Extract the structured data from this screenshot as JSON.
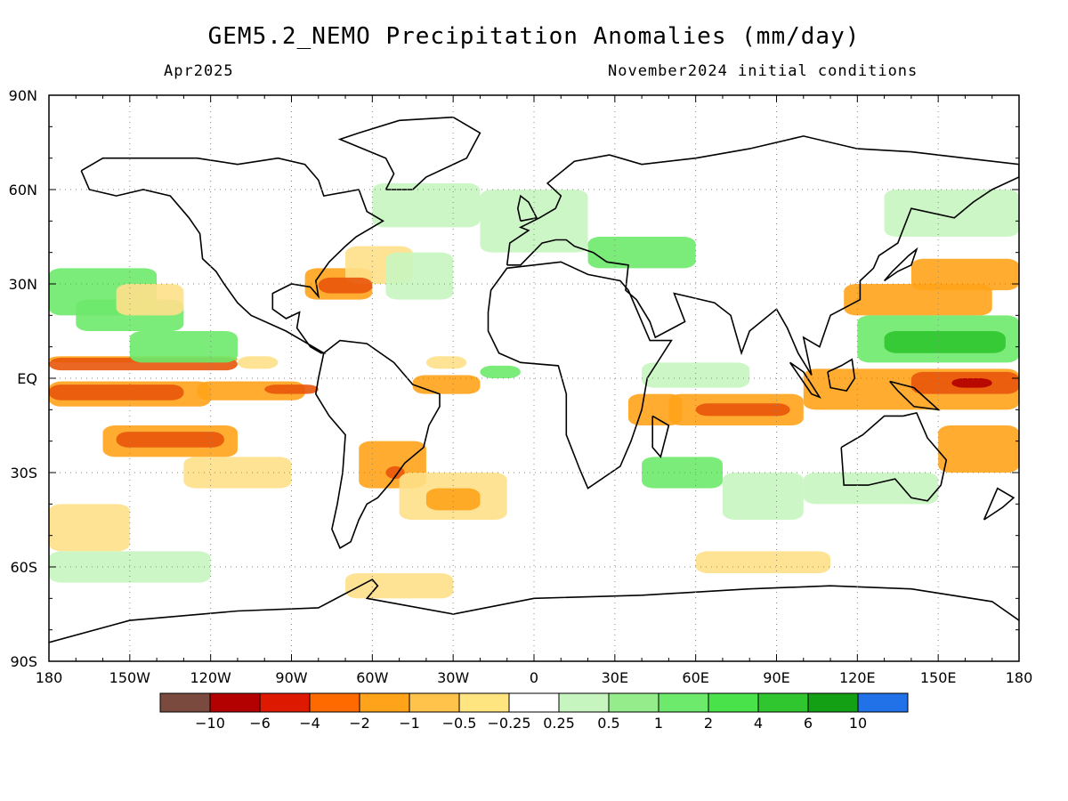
{
  "title": "GEM5.2_NEMO Precipitation Anomalies (mm/day)",
  "valid_month": "Apr2025",
  "init_conditions": "November2024 initial conditions",
  "axes": {
    "lat_labels": [
      "90N",
      "60N",
      "30N",
      "EQ",
      "30S",
      "60S",
      "90S"
    ],
    "lon_labels": [
      "180",
      "150W",
      "120W",
      "90W",
      "60W",
      "30W",
      "0",
      "30E",
      "60E",
      "90E",
      "120E",
      "150E",
      "180"
    ]
  },
  "colorbar": {
    "colors": [
      "#7a4a3f",
      "#b30000",
      "#dd1a00",
      "#ff6a00",
      "#ffa31a",
      "#ffc24a",
      "#ffe580",
      "#ffffff",
      "#c6f5bf",
      "#95ec8a",
      "#6de96b",
      "#4ae24a",
      "#30c630",
      "#14a014",
      "#2172e8"
    ],
    "labels": [
      "−10",
      "−6",
      "−4",
      "−2",
      "−1",
      "−0.5",
      "−0.25",
      "0.25",
      "0.5",
      "1",
      "2",
      "4",
      "6",
      "10"
    ]
  },
  "colors": {
    "dry_strong": "#e8550b",
    "dry": "#ffa31a",
    "dry_weak": "#ffe08a",
    "wet_weak": "#c6f5bf",
    "wet": "#6de96b",
    "wet_strong": "#30c630",
    "coast": "#000000"
  }
}
